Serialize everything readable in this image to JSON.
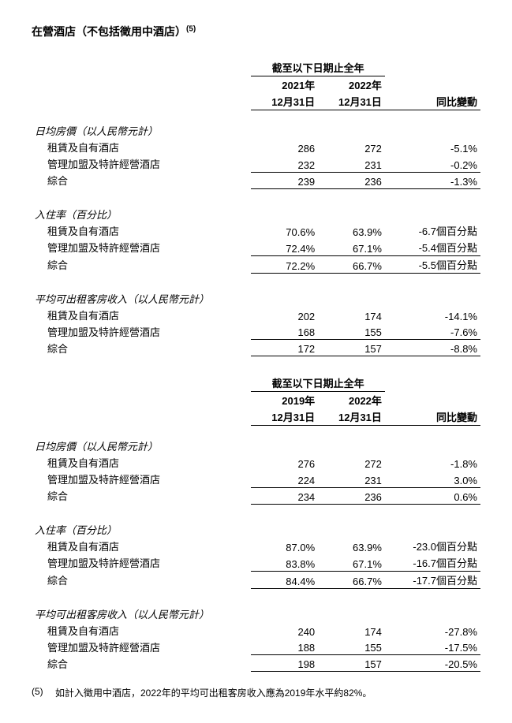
{
  "title": "在營酒店（不包括徵用中酒店）",
  "title_sup": "(5)",
  "period_label": "截至以下日期止全年",
  "change_label": "同比變動",
  "tables": [
    {
      "year1": "2021年",
      "date1": "12月31日",
      "year2": "2022年",
      "date2": "12月31日",
      "sections": [
        {
          "head": "日均房價（以人民幣元計）",
          "rows": [
            {
              "label": "租賃及自有酒店",
              "v1": "286",
              "v2": "272",
              "chg": "-5.1%",
              "ul": false
            },
            {
              "label": "管理加盟及特許經營酒店",
              "v1": "232",
              "v2": "231",
              "chg": "-0.2%",
              "ul": true
            },
            {
              "label": "綜合",
              "v1": "239",
              "v2": "236",
              "chg": "-1.3%",
              "ul": true
            }
          ]
        },
        {
          "head": "入住率（百分比）",
          "rows": [
            {
              "label": "租賃及自有酒店",
              "v1": "70.6%",
              "v2": "63.9%",
              "chg": "-6.7個百分點",
              "ul": false
            },
            {
              "label": "管理加盟及特許經營酒店",
              "v1": "72.4%",
              "v2": "67.1%",
              "chg": "-5.4個百分點",
              "ul": true
            },
            {
              "label": "綜合",
              "v1": "72.2%",
              "v2": "66.7%",
              "chg": "-5.5個百分點",
              "ul": true
            }
          ]
        },
        {
          "head": "平均可出租客房收入（以人民幣元計）",
          "rows": [
            {
              "label": "租賃及自有酒店",
              "v1": "202",
              "v2": "174",
              "chg": "-14.1%",
              "ul": false
            },
            {
              "label": "管理加盟及特許經營酒店",
              "v1": "168",
              "v2": "155",
              "chg": "-7.6%",
              "ul": true
            },
            {
              "label": "綜合",
              "v1": "172",
              "v2": "157",
              "chg": "-8.8%",
              "ul": true
            }
          ]
        }
      ]
    },
    {
      "year1": "2019年",
      "date1": "12月31日",
      "year2": "2022年",
      "date2": "12月31日",
      "sections": [
        {
          "head": "日均房價（以人民幣元計）",
          "rows": [
            {
              "label": "租賃及自有酒店",
              "v1": "276",
              "v2": "272",
              "chg": "-1.8%",
              "ul": false
            },
            {
              "label": "管理加盟及特許經營酒店",
              "v1": "224",
              "v2": "231",
              "chg": "3.0%",
              "ul": true
            },
            {
              "label": "綜合",
              "v1": "234",
              "v2": "236",
              "chg": "0.6%",
              "ul": true
            }
          ]
        },
        {
          "head": "入住率（百分比）",
          "rows": [
            {
              "label": "租賃及自有酒店",
              "v1": "87.0%",
              "v2": "63.9%",
              "chg": "-23.0個百分點",
              "ul": false
            },
            {
              "label": "管理加盟及特許經營酒店",
              "v1": "83.8%",
              "v2": "67.1%",
              "chg": "-16.7個百分點",
              "ul": true
            },
            {
              "label": "綜合",
              "v1": "84.4%",
              "v2": "66.7%",
              "chg": "-17.7個百分點",
              "ul": true
            }
          ]
        },
        {
          "head": "平均可出租客房收入（以人民幣元計）",
          "rows": [
            {
              "label": "租賃及自有酒店",
              "v1": "240",
              "v2": "174",
              "chg": "-27.8%",
              "ul": false
            },
            {
              "label": "管理加盟及特許經營酒店",
              "v1": "188",
              "v2": "155",
              "chg": "-17.5%",
              "ul": true
            },
            {
              "label": "綜合",
              "v1": "198",
              "v2": "157",
              "chg": "-20.5%",
              "ul": true
            }
          ]
        }
      ]
    }
  ],
  "footnote_num": "(5)",
  "footnote_text": "如計入徵用中酒店，2022年的平均可出租客房收入應為2019年水平約82%。"
}
